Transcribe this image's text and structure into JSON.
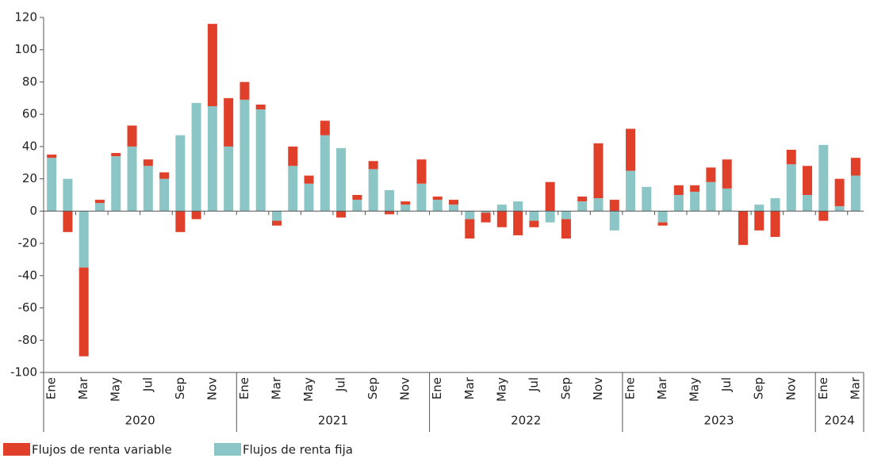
{
  "chart_data": {
    "type": "stacked_bar",
    "categories": [
      "Ene",
      null,
      "Mar",
      null,
      "May",
      null,
      "Jul",
      null,
      "Sep",
      null,
      "Nov",
      null,
      "Ene",
      null,
      "Mar",
      null,
      "May",
      null,
      "Jul",
      null,
      "Sep",
      null,
      "Nov",
      null,
      "Ene",
      null,
      "Mar",
      null,
      "May",
      null,
      "Jul",
      null,
      "Sep",
      null,
      "Nov",
      null,
      "Ene",
      null,
      "Mar",
      null,
      "May",
      null,
      "Jul",
      null,
      "Sep",
      null,
      "Nov",
      null,
      "Ene",
      null,
      "Mar"
    ],
    "years": [
      "2020",
      "2021",
      "2022",
      "2023",
      "2024"
    ],
    "series": [
      {
        "name": "Flujos de renta fija",
        "color": "#8cc5c5",
        "values": [
          33,
          20,
          -35,
          5,
          34,
          40,
          28,
          20,
          47,
          67,
          65,
          40,
          69,
          63,
          -6,
          28,
          17,
          47,
          39,
          7,
          26,
          13,
          4,
          17,
          7,
          4,
          -5,
          -1,
          4,
          6,
          -6,
          -7,
          -5,
          6,
          8,
          -12,
          25,
          15,
          -7,
          10,
          12,
          18,
          14,
          0,
          4,
          8,
          29,
          10,
          41,
          3,
          22
        ]
      },
      {
        "name": "Flujos de renta variable",
        "color": "#e0402a",
        "values": [
          2,
          -13,
          -55,
          2,
          2,
          13,
          4,
          4,
          -13,
          -5,
          51,
          30,
          11,
          3,
          -3,
          12,
          5,
          9,
          -4,
          3,
          5,
          -2,
          2,
          15,
          2,
          3,
          -12,
          -6,
          -10,
          -15,
          -4,
          18,
          -12,
          3,
          34,
          7,
          26,
          0,
          -2,
          6,
          4,
          9,
          18,
          -21,
          -12,
          -16,
          9,
          18,
          -6,
          17,
          11
        ]
      }
    ],
    "ylim": [
      -100,
      120
    ],
    "yticks": [
      -100,
      -80,
      -60,
      -40,
      -20,
      0,
      20,
      40,
      60,
      80,
      100,
      120
    ]
  }
}
